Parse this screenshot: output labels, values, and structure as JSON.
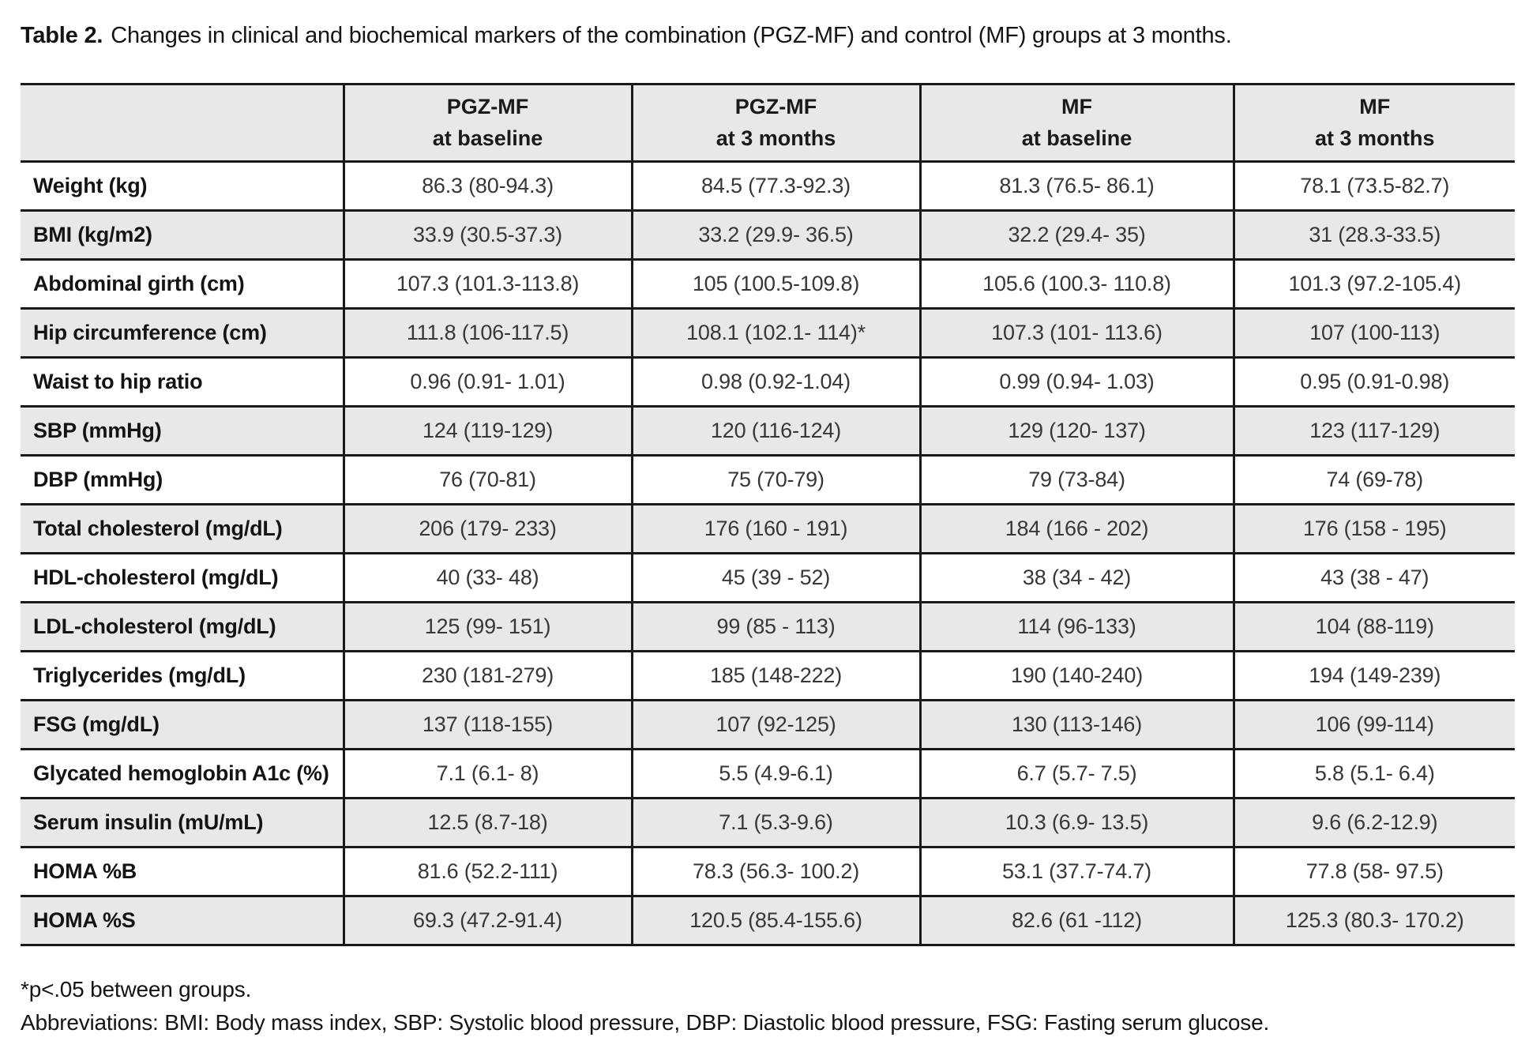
{
  "title": {
    "prefix": "Table 2.",
    "text": "Changes in clinical and biochemical markers of the combination (PGZ-MF) and control (MF) groups at 3 months."
  },
  "table": {
    "header": [
      {
        "line1": "",
        "line2": ""
      },
      {
        "line1": "PGZ-MF",
        "line2": "at baseline"
      },
      {
        "line1": "PGZ-MF",
        "line2": "at 3 months"
      },
      {
        "line1": "MF",
        "line2": "at baseline"
      },
      {
        "line1": "MF",
        "line2": "at 3 months"
      }
    ],
    "rows": [
      {
        "label": "Weight (kg)",
        "values": [
          "86.3 (80-94.3)",
          "84.5 (77.3-92.3)",
          "81.3 (76.5- 86.1)",
          "78.1 (73.5-82.7)"
        ]
      },
      {
        "label": "BMI (kg/m2)",
        "values": [
          "33.9 (30.5-37.3)",
          "33.2 (29.9- 36.5)",
          "32.2 (29.4- 35)",
          "31 (28.3-33.5)"
        ]
      },
      {
        "label": "Abdominal girth (cm)",
        "values": [
          "107.3 (101.3-113.8)",
          "105 (100.5-109.8)",
          "105.6 (100.3- 110.8)",
          "101.3 (97.2-105.4)"
        ]
      },
      {
        "label": "Hip circumference (cm)",
        "values": [
          "111.8 (106-117.5)",
          "108.1 (102.1- 114)*",
          "107.3 (101- 113.6)",
          "107 (100-113)"
        ]
      },
      {
        "label": "Waist to hip ratio",
        "values": [
          "0.96 (0.91- 1.01)",
          "0.98 (0.92-1.04)",
          "0.99 (0.94- 1.03)",
          "0.95 (0.91-0.98)"
        ]
      },
      {
        "label": "SBP (mmHg)",
        "values": [
          "124 (119-129)",
          "120 (116-124)",
          "129 (120- 137)",
          "123 (117-129)"
        ]
      },
      {
        "label": "DBP (mmHg)",
        "values": [
          "76 (70-81)",
          "75 (70-79)",
          "79 (73-84)",
          "74 (69-78)"
        ]
      },
      {
        "label": "Total cholesterol (mg/dL)",
        "values": [
          "206 (179- 233)",
          "176 (160 - 191)",
          "184 (166 - 202)",
          "176 (158 - 195)"
        ]
      },
      {
        "label": "HDL-cholesterol (mg/dL)",
        "values": [
          "40 (33- 48)",
          "45 (39 - 52)",
          "38 (34 - 42)",
          "43 (38 - 47)"
        ]
      },
      {
        "label": "LDL-cholesterol (mg/dL)",
        "values": [
          "125 (99- 151)",
          "99 (85 - 113)",
          "114 (96-133)",
          "104 (88-119)"
        ]
      },
      {
        "label": "Triglycerides (mg/dL)",
        "values": [
          "230 (181-279)",
          "185 (148-222)",
          "190 (140-240)",
          "194 (149-239)"
        ]
      },
      {
        "label": "FSG (mg/dL)",
        "values": [
          "137 (118-155)",
          "107 (92-125)",
          "130 (113-146)",
          "106 (99-114)"
        ]
      },
      {
        "label": "Glycated hemoglobin A1c (%)",
        "values": [
          "7.1 (6.1- 8)",
          "5.5 (4.9-6.1)",
          "6.7 (5.7- 7.5)",
          "5.8 (5.1- 6.4)"
        ]
      },
      {
        "label": "Serum insulin (mU/mL)",
        "values": [
          "12.5 (8.7-18)",
          "7.1 (5.3-9.6)",
          "10.3 (6.9- 13.5)",
          "9.6 (6.2-12.9)"
        ]
      },
      {
        "label": "HOMA %B",
        "values": [
          "81.6 (52.2-111)",
          "78.3 (56.3- 100.2)",
          "53.1 (37.7-74.7)",
          "77.8 (58- 97.5)"
        ]
      },
      {
        "label": "HOMA %S",
        "values": [
          "69.3 (47.2-91.4)",
          "120.5 (85.4-155.6)",
          "82.6 (61 -112)",
          "125.3 (80.3- 170.2)"
        ]
      }
    ]
  },
  "footnotes": {
    "significance": "*p<.05 between groups.",
    "abbreviations": "Abbreviations: BMI: Body mass index, SBP: Systolic blood pressure, DBP: Diastolic blood pressure, FSG: Fasting serum glucose."
  },
  "colors": {
    "row_shade": "#e8e8e9",
    "border": "#1a1a1a",
    "text": "#141414"
  }
}
